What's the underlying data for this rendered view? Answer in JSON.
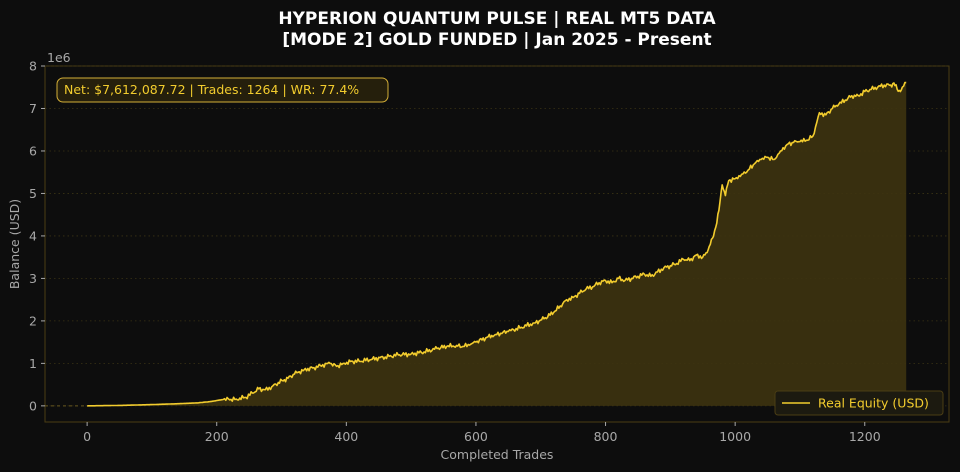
{
  "chart_data": {
    "type": "area",
    "title_lines": [
      "HYPERION QUANTUM PULSE | REAL MT5 DATA",
      "[MODE 2] GOLD FUNDED | Jan 2025 - Present"
    ],
    "xlabel": "Completed Trades",
    "ylabel": "Balance (USD)",
    "y_offset_label": "1e6",
    "xlim": [
      -65,
      1330
    ],
    "ylim": [
      -0.38,
      8.0
    ],
    "xticks": [
      0,
      200,
      400,
      600,
      800,
      1000,
      1200
    ],
    "yticks": [
      0,
      1,
      2,
      3,
      4,
      5,
      6,
      7,
      8
    ],
    "grid": "y-dotted",
    "stats_box": "Net: $7,612,087.72 | Trades: 1264 | WR: 77.4%",
    "legend_position": "lower-right",
    "colors": {
      "line": "#f2cc2e",
      "fill": "#3d3310",
      "background": "#0d0d0d",
      "spine": "#4a3d14"
    },
    "series": [
      {
        "name": "Real Equity (USD)",
        "x": [
          0,
          50,
          100,
          140,
          170,
          190,
          210,
          230,
          245,
          255,
          265,
          275,
          285,
          295,
          310,
          320,
          335,
          350,
          360,
          375,
          385,
          395,
          410,
          420,
          440,
          460,
          480,
          500,
          520,
          540,
          555,
          570,
          580,
          590,
          600,
          615,
          630,
          650,
          670,
          690,
          705,
          720,
          730,
          740,
          750,
          760,
          770,
          780,
          790,
          800,
          810,
          820,
          830,
          840,
          850,
          860,
          870,
          880,
          890,
          900,
          910,
          920,
          930,
          940,
          950,
          955,
          960,
          965,
          970,
          975,
          980,
          985,
          990,
          1000,
          1010,
          1020,
          1030,
          1040,
          1050,
          1060,
          1070,
          1080,
          1090,
          1100,
          1110,
          1120,
          1130,
          1140,
          1150,
          1160,
          1170,
          1180,
          1190,
          1200,
          1210,
          1220,
          1230,
          1240,
          1245,
          1250,
          1255,
          1258,
          1264
        ],
        "values": [
          0.0,
          0.01,
          0.03,
          0.05,
          0.07,
          0.1,
          0.15,
          0.16,
          0.2,
          0.3,
          0.4,
          0.38,
          0.45,
          0.55,
          0.65,
          0.75,
          0.85,
          0.9,
          0.95,
          1.0,
          0.93,
          1.0,
          1.05,
          1.05,
          1.1,
          1.15,
          1.2,
          1.22,
          1.27,
          1.35,
          1.4,
          1.42,
          1.4,
          1.43,
          1.5,
          1.6,
          1.68,
          1.75,
          1.85,
          1.95,
          2.05,
          2.2,
          2.35,
          2.5,
          2.55,
          2.65,
          2.75,
          2.8,
          2.9,
          2.95,
          2.9,
          3.0,
          2.95,
          3.0,
          3.05,
          3.1,
          3.05,
          3.15,
          3.25,
          3.3,
          3.35,
          3.45,
          3.42,
          3.55,
          3.5,
          3.6,
          3.75,
          3.95,
          4.2,
          4.6,
          5.2,
          4.95,
          5.3,
          5.35,
          5.45,
          5.55,
          5.7,
          5.8,
          5.85,
          5.8,
          6.0,
          6.15,
          6.2,
          6.22,
          6.25,
          6.35,
          6.9,
          6.85,
          7.0,
          7.1,
          7.2,
          7.3,
          7.3,
          7.4,
          7.45,
          7.5,
          7.55,
          7.55,
          7.6,
          7.45,
          7.4,
          7.5,
          7.61
        ]
      }
    ]
  }
}
